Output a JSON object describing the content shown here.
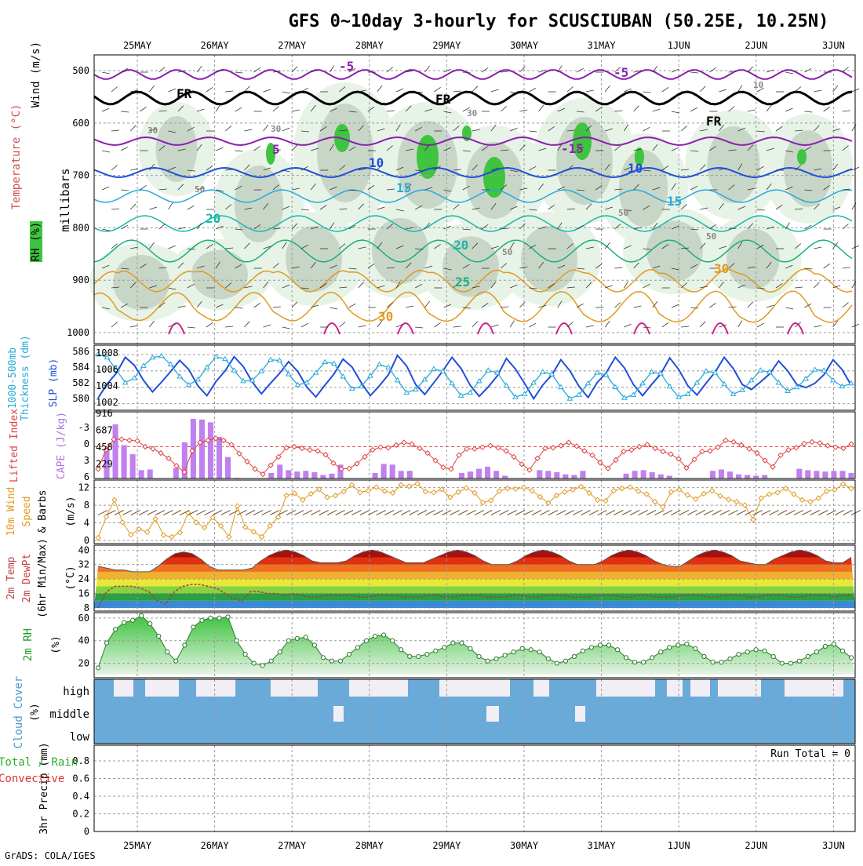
{
  "title": "GFS 0~10day 3-hourly for SCUSCIUBAN (50.25E, 10.25N)",
  "credit": "GrADS: COLA/IGES",
  "dates": [
    "25MAY",
    "26MAY",
    "27MAY",
    "28MAY",
    "29MAY",
    "30MAY",
    "31MAY",
    "1JUN",
    "2JUN",
    "3JUN"
  ],
  "colors": {
    "purple": "#8b1fb0",
    "blue": "#1f4fd8",
    "cyan": "#2aa9d8",
    "teal": "#1bb8a8",
    "green": "#1aaf7a",
    "orange": "#e09a20",
    "magenta": "#d01f8a",
    "rhGreen": "#3ec43e",
    "grid": "#9a9a9a"
  },
  "panels": {
    "profile": {
      "ylabel_units": "millibars",
      "yticks": [
        "500",
        "600",
        "700",
        "800",
        "900",
        "1000"
      ],
      "legend": {
        "wind": "Wind (m/s)",
        "temp": "Temperature (°C)",
        "rh": "RH (%)"
      },
      "contour_labels": [
        "-5",
        "-5",
        "5",
        "-15",
        "10",
        "10",
        "15",
        "15",
        "20",
        "20",
        "25",
        "30",
        "30",
        "FR",
        "FR",
        "FR",
        "30",
        "30",
        "30",
        "50",
        "50",
        "50",
        "50",
        "10"
      ]
    },
    "slp": {
      "left_label": "1000-500mb",
      "left_label2": "Thickness (dm)",
      "right_label": "SLP (mb)",
      "left_ticks": [
        "586",
        "584",
        "582",
        "580"
      ],
      "right_ticks": [
        "1008",
        "1006",
        "1004",
        "1002"
      ]
    },
    "cape": {
      "left_label": "Lifted Index",
      "right_label": "CAPE (J/kg)",
      "left_ticks": [
        "-3",
        "0",
        "3",
        "6"
      ],
      "right_ticks": [
        "916",
        "687",
        "458",
        "229"
      ]
    },
    "wind10": {
      "label1": "10m Wind",
      "label2": "Speed",
      "label3": "& Barbs",
      "units": "(m/s)",
      "yticks": [
        "12",
        "8",
        "4",
        "0"
      ]
    },
    "temp2m": {
      "label1": "2m Temp",
      "label2": "2m DewPt",
      "label3": "(6hr Min/Max)",
      "units": "(°C)",
      "yticks": [
        "40",
        "32",
        "24",
        "16",
        "8"
      ]
    },
    "rh2m": {
      "label": "2m RH",
      "units": "(%)",
      "yticks": [
        "60",
        "40",
        "20"
      ]
    },
    "cloud": {
      "label": "Cloud Cover",
      "units": "(%)",
      "levels": [
        "high",
        "middle",
        "low"
      ]
    },
    "precip": {
      "label1": "Total / Rain",
      "label2": "Convective",
      "label3": "3hr Precip (mm)",
      "yticks": [
        "0.8",
        "0.6",
        "0.4",
        "0.2",
        "0"
      ],
      "run_total": "Run Total = 0"
    }
  },
  "chart_data": [
    {
      "type": "line",
      "name": "SLP (mb)",
      "ylim": [
        1001,
        1010
      ],
      "values": [
        1002.2,
        1004.5,
        1006.2,
        1008.8,
        1007.5,
        1005.1,
        1003.2,
        1004.8,
        1006.5,
        1008.3,
        1006.8,
        1004.2,
        1002.6,
        1004.9,
        1006.6,
        1008.9,
        1007.3,
        1004.8,
        1002.9,
        1004.6,
        1006.2,
        1008.1,
        1006.5,
        1004.0,
        1002.4,
        1004.3,
        1006.1,
        1008.5,
        1007.2,
        1004.7,
        1002.6,
        1004.2,
        1006.0,
        1009.1,
        1007.4,
        1004.4,
        1002.8,
        1004.7,
        1006.6,
        1008.8,
        1007.0,
        1004.3,
        1002.5,
        1004.0,
        1005.8,
        1008.6,
        1006.9,
        1004.6,
        1002.1,
        1004.3,
        1005.9,
        1008.4,
        1006.6,
        1004.1,
        1002.3,
        1004.7,
        1006.3,
        1008.8,
        1007.1,
        1004.4,
        1002.6,
        1004.4,
        1006.1,
        1008.7,
        1006.8,
        1004.2,
        1002.7,
        1004.6,
        1006.4,
        1008.8,
        1007.0,
        1004.4,
        1003.6,
        1004.8,
        1006.1,
        1008.2,
        1006.6,
        1004.4,
        1003.9,
        1004.6,
        1006.0,
        1008.4,
        1006.8,
        1004.3
      ]
    },
    {
      "type": "line",
      "name": "1000-500mb Thickness (dm)",
      "ylim": [
        579.5,
        586.8
      ],
      "values": [
        586.2,
        585.8,
        584.2,
        582.5,
        583.1,
        584.7,
        585.8,
        586.0,
        584.9,
        583.3,
        582.2,
        582.9,
        584.5,
        585.9,
        585.6,
        584.1,
        582.7,
        582.8,
        584.0,
        585.5,
        585.4,
        583.6,
        582.2,
        582.5,
        583.8,
        585.2,
        585.0,
        583.3,
        581.7,
        582.0,
        583.4,
        584.9,
        584.5,
        582.8,
        581.2,
        581.6,
        582.9,
        584.3,
        584.0,
        582.4,
        580.8,
        581.2,
        582.7,
        584.1,
        583.8,
        582.1,
        580.6,
        581.0,
        582.5,
        583.9,
        583.6,
        581.9,
        580.4,
        580.9,
        582.4,
        583.8,
        583.5,
        581.9,
        580.5,
        580.9,
        582.4,
        583.9,
        583.7,
        582.0,
        580.6,
        581.0,
        582.5,
        584.0,
        583.8,
        582.3,
        581.0,
        581.5,
        582.8,
        584.1,
        583.9,
        582.5,
        581.4,
        581.9,
        583.0,
        584.2,
        584.1,
        582.8,
        582.0,
        582.4
      ]
    },
    {
      "type": "line",
      "name": "Lifted Index",
      "ylim": [
        6,
        -6
      ],
      "values": [
        4.2,
        0.6,
        -1.4,
        -1.4,
        -1.2,
        -1.1,
        0.0,
        0.4,
        1.2,
        2.2,
        3.6,
        4.8,
        0.8,
        -0.8,
        -1.2,
        -1.6,
        -1.2,
        -0.4,
        1.3,
        2.8,
        4.2,
        5.2,
        3.5,
        1.9,
        0.2,
        0.0,
        0.3,
        0.6,
        0.8,
        1.5,
        3.1,
        4.2,
        4.1,
        3.2,
        1.9,
        0.6,
        0.1,
        0.2,
        -0.3,
        -0.8,
        -0.5,
        0.3,
        1.2,
        2.6,
        3.9,
        4.2,
        1.6,
        0.4,
        0.4,
        0.1,
        -0.2,
        0.2,
        0.8,
        1.9,
        3.3,
        4.4,
        2.2,
        0.3,
        0.2,
        -0.2,
        -0.8,
        -0.1,
        0.8,
        1.6,
        3.0,
        4.1,
        2.5,
        0.9,
        0.6,
        0.0,
        -0.4,
        0.3,
        0.9,
        1.4,
        2.3,
        4.0,
        2.4,
        0.9,
        0.8,
        0.1,
        -1.2,
        -0.9,
        -0.3,
        0.4,
        1.2,
        2.6,
        3.8,
        1.6,
        0.6,
        0.2,
        -0.6,
        -0.9,
        -0.7,
        -0.2,
        0.1,
        0.3,
        -0.5
      ]
    },
    {
      "type": "bar",
      "name": "CAPE (J/kg)",
      "ylim": [
        0,
        916
      ],
      "values": [
        0,
        430,
        780,
        480,
        350,
        120,
        130,
        0,
        0,
        150,
        520,
        860,
        850,
        810,
        600,
        310,
        10,
        0,
        0,
        0,
        80,
        200,
        120,
        100,
        110,
        90,
        50,
        70,
        200,
        0,
        0,
        0,
        80,
        210,
        200,
        110,
        110,
        0,
        0,
        0,
        0,
        0,
        80,
        100,
        140,
        170,
        110,
        40,
        0,
        0,
        0,
        120,
        110,
        90,
        60,
        50,
        110,
        0,
        0,
        0,
        0,
        70,
        110,
        120,
        90,
        60,
        40,
        10,
        0,
        0,
        0,
        110,
        130,
        100,
        60,
        50,
        40,
        50,
        0,
        0,
        0,
        140,
        120,
        110,
        100,
        110,
        110,
        80
      ]
    },
    {
      "type": "line",
      "name": "10m Wind Speed (m/s)",
      "ylim": [
        0,
        13
      ],
      "values": [
        0.6,
        5.4,
        9.2,
        4.1,
        1.3,
        2.6,
        1.9,
        4.9,
        1.2,
        0.8,
        1.8,
        6.3,
        4.1,
        2.9,
        5.2,
        3.3,
        0.8,
        7.8,
        3.0,
        2.0,
        0.8,
        3.3,
        5.3,
        10.2,
        10.7,
        9.2,
        10.6,
        11.6,
        9.8,
        10.2,
        11.1,
        12.6,
        10.9,
        11.3,
        12.1,
        11.2,
        10.8,
        12.6,
        12.3,
        12.9,
        11.1,
        10.9,
        11.6,
        9.8,
        11.0,
        11.9,
        10.8,
        8.6,
        9.1,
        11.2,
        11.8,
        11.7,
        12.0,
        11.3,
        9.9,
        8.5,
        10.2,
        11.0,
        11.5,
        12.2,
        10.8,
        9.2,
        9.0,
        11.3,
        11.8,
        12.1,
        11.2,
        10.5,
        8.8,
        7.6,
        11.0,
        11.5,
        10.3,
        9.4,
        10.6,
        11.3,
        10.1,
        9.3,
        8.8,
        8.0,
        4.7,
        9.6,
        10.5,
        10.9,
        11.8,
        10.5,
        9.2,
        8.8,
        9.6,
        11.2,
        11.5,
        12.8,
        11.8
      ]
    },
    {
      "type": "area",
      "name": "2m Temp (°C)",
      "ylim": [
        8,
        41
      ],
      "values": [
        31,
        30,
        29,
        29,
        28,
        28,
        28,
        31,
        35,
        38,
        39,
        38,
        35,
        31,
        29,
        29,
        29,
        29,
        30,
        34,
        37,
        39,
        40,
        39,
        37,
        34,
        33,
        33,
        33,
        34,
        37,
        39,
        40,
        39,
        37,
        35,
        33,
        33,
        33,
        35,
        37,
        39,
        40,
        39,
        37,
        34,
        32,
        32,
        32,
        34,
        37,
        39,
        40,
        39,
        37,
        34,
        32,
        32,
        32,
        34,
        37,
        39,
        40,
        39,
        37,
        34,
        32,
        31,
        31,
        34,
        37,
        39,
        40,
        39,
        37,
        34,
        33,
        32,
        32,
        35,
        37,
        39,
        40,
        39,
        37,
        34,
        33,
        33,
        36
      ]
    },
    {
      "type": "line",
      "name": "2m DewPt (°C)",
      "ylim": [
        8,
        41
      ],
      "values": [
        8,
        17,
        20,
        20,
        20,
        19,
        17,
        12,
        10,
        17,
        20,
        21,
        21,
        20,
        19,
        16,
        13,
        12,
        17,
        17,
        16,
        16,
        15,
        16,
        15,
        14,
        14,
        15,
        15,
        15,
        15,
        14,
        14,
        15,
        15,
        15,
        14,
        14,
        14,
        15,
        15,
        14,
        14,
        15,
        15,
        15,
        14,
        14,
        14,
        15,
        15,
        14,
        14,
        15,
        15,
        15,
        14,
        14,
        14,
        15,
        15,
        15,
        14,
        14,
        15,
        15,
        14,
        14,
        14,
        15,
        15,
        15,
        14,
        14,
        15,
        15,
        15,
        14,
        14,
        15,
        15,
        15,
        14,
        14,
        15,
        15,
        15,
        14,
        15,
        15
      ]
    },
    {
      "type": "area",
      "name": "2m RH (%)",
      "ylim": [
        10,
        62
      ],
      "values": [
        16,
        38,
        50,
        56,
        58,
        62,
        55,
        44,
        30,
        22,
        36,
        52,
        58,
        60,
        60,
        61,
        40,
        28,
        20,
        18,
        22,
        30,
        40,
        42,
        43,
        36,
        25,
        22,
        22,
        28,
        34,
        40,
        44,
        45,
        40,
        32,
        26,
        26,
        28,
        31,
        34,
        38,
        38,
        33,
        26,
        22,
        24,
        27,
        30,
        33,
        32,
        30,
        24,
        20,
        22,
        26,
        31,
        34,
        36,
        36,
        32,
        25,
        21,
        21,
        25,
        30,
        34,
        36,
        37,
        33,
        26,
        21,
        21,
        24,
        28,
        30,
        32,
        31,
        26,
        20,
        20,
        22,
        26,
        30,
        35,
        37,
        31,
        25
      ]
    }
  ]
}
